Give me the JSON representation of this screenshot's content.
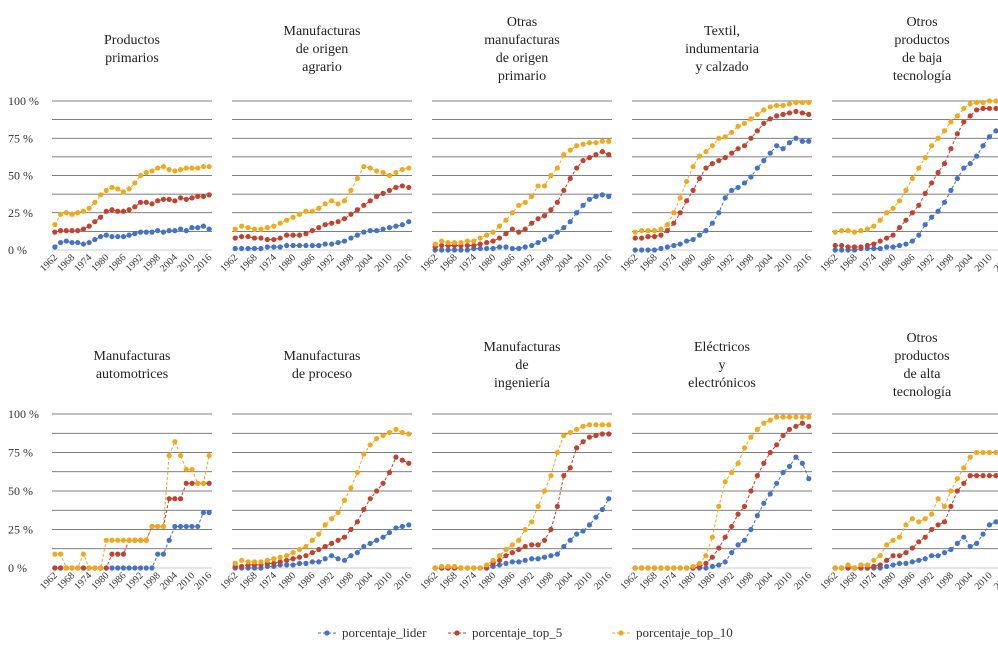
{
  "chart_data": {
    "type": "line",
    "categories": [
      "1962",
      null,
      null,
      "1968",
      null,
      null,
      "1974",
      null,
      null,
      "1980",
      null,
      null,
      "1986",
      null,
      null,
      "1992",
      null,
      null,
      "1998",
      null,
      null,
      "2004",
      null,
      null,
      "2010",
      null,
      null,
      "2016"
    ],
    "ylim": [
      0,
      100
    ],
    "yticks": [
      {
        "value": 0,
        "label": "0 %"
      },
      {
        "value": 25,
        "label": "25 %"
      },
      {
        "value": 50,
        "label": "50 %"
      },
      {
        "value": 75,
        "label": "75 %"
      },
      {
        "value": 100,
        "label": "100 %"
      }
    ],
    "minor_yticks": [
      12.5,
      37.5,
      62.5,
      87.5
    ],
    "grid": true,
    "legend": [
      {
        "name": "porcentaje_lider",
        "color": "#4472c4"
      },
      {
        "name": "porcentaje_top_5",
        "color": "#c0422f"
      },
      {
        "name": "porcentaje_top_10",
        "color": "#f0a91c"
      }
    ],
    "panels": [
      {
        "title": "Productos\nprimarios",
        "series": [
          {
            "values": [
              2,
              5,
              6,
              5,
              5,
              4,
              5,
              7,
              9,
              10,
              9,
              9,
              9,
              10,
              11,
              12,
              12,
              12,
              13,
              12,
              13,
              13,
              14,
              13,
              15,
              15,
              16,
              14
            ]
          },
          {
            "values": [
              12,
              13,
              13,
              13,
              13,
              14,
              16,
              19,
              22,
              26,
              27,
              26,
              26,
              27,
              29,
              32,
              32,
              31,
              33,
              34,
              34,
              33,
              35,
              34,
              35,
              36,
              36,
              37
            ]
          },
          {
            "values": [
              17,
              24,
              25,
              24,
              25,
              26,
              28,
              32,
              37,
              40,
              42,
              41,
              39,
              41,
              45,
              50,
              52,
              53,
              55,
              56,
              54,
              53,
              54,
              55,
              55,
              55,
              56,
              56
            ]
          }
        ]
      },
      {
        "title": "Manufacturas\nde origen\nagrario",
        "series": [
          {
            "values": [
              1,
              1,
              1,
              1,
              1,
              2,
              2,
              2,
              3,
              3,
              3,
              3,
              3,
              3,
              4,
              4,
              5,
              6,
              8,
              10,
              12,
              13,
              13,
              14,
              15,
              16,
              17,
              19
            ]
          },
          {
            "values": [
              8,
              9,
              9,
              8,
              8,
              7,
              7,
              8,
              10,
              10,
              10,
              11,
              13,
              15,
              17,
              18,
              19,
              21,
              24,
              27,
              30,
              33,
              36,
              38,
              40,
              42,
              43,
              42
            ]
          },
          {
            "values": [
              14,
              16,
              15,
              14,
              14,
              15,
              16,
              18,
              20,
              22,
              24,
              26,
              26,
              28,
              31,
              33,
              31,
              33,
              40,
              48,
              56,
              55,
              53,
              52,
              50,
              52,
              54,
              55
            ]
          }
        ]
      },
      {
        "title": "Otras\nmanufacturas\nde origen\nprimario",
        "series": [
          {
            "values": [
              0,
              0,
              0,
              0,
              0,
              0,
              1,
              1,
              1,
              1,
              2,
              2,
              1,
              1,
              2,
              3,
              5,
              7,
              9,
              12,
              15,
              19,
              25,
              30,
              34,
              36,
              37,
              36
            ]
          },
          {
            "values": [
              2,
              3,
              3,
              3,
              3,
              3,
              3,
              4,
              5,
              6,
              8,
              11,
              14,
              12,
              14,
              18,
              21,
              23,
              27,
              32,
              40,
              48,
              55,
              60,
              62,
              64,
              66,
              64
            ]
          },
          {
            "values": [
              4,
              6,
              5,
              5,
              5,
              6,
              6,
              8,
              10,
              12,
              16,
              20,
              25,
              30,
              32,
              36,
              43,
              43,
              50,
              55,
              64,
              67,
              70,
              71,
              72,
              72,
              73,
              73
            ]
          }
        ]
      },
      {
        "title": "Textil,\nindumentaria\ny calzado",
        "series": [
          {
            "values": [
              0,
              0,
              0,
              0,
              1,
              2,
              3,
              4,
              6,
              7,
              10,
              13,
              18,
              25,
              35,
              40,
              42,
              45,
              49,
              55,
              60,
              65,
              70,
              68,
              72,
              75,
              73,
              73
            ]
          },
          {
            "values": [
              8,
              8,
              9,
              9,
              10,
              13,
              18,
              25,
              33,
              40,
              48,
              55,
              58,
              60,
              62,
              65,
              68,
              70,
              75,
              80,
              85,
              88,
              90,
              91,
              92,
              93,
              92,
              91
            ]
          },
          {
            "values": [
              12,
              13,
              13,
              13,
              14,
              17,
              25,
              35,
              46,
              56,
              63,
              66,
              70,
              75,
              76,
              79,
              83,
              85,
              88,
              91,
              94,
              96,
              97,
              97,
              98,
              99,
              99,
              99
            ]
          }
        ]
      },
      {
        "title": "Otros\nproductos\nde baja\ntecnología",
        "series": [
          {
            "values": [
              0,
              0,
              0,
              0,
              1,
              1,
              1,
              1,
              2,
              2,
              3,
              4,
              6,
              10,
              17,
              22,
              26,
              32,
              40,
              48,
              55,
              58,
              63,
              70,
              76,
              80,
              82,
              83
            ]
          },
          {
            "values": [
              3,
              3,
              2,
              2,
              2,
              3,
              4,
              6,
              8,
              10,
              15,
              20,
              25,
              30,
              38,
              45,
              52,
              58,
              68,
              78,
              86,
              90,
              94,
              95,
              95,
              95,
              95,
              95
            ]
          },
          {
            "values": [
              12,
              13,
              13,
              12,
              13,
              14,
              16,
              20,
              25,
              28,
              33,
              40,
              48,
              55,
              62,
              70,
              75,
              80,
              86,
              90,
              95,
              98,
              99,
              99,
              100,
              100,
              100,
              99
            ]
          }
        ]
      },
      {
        "title": "Manufacturas\nautomotrices",
        "series": [
          {
            "values": [
              0,
              0,
              0,
              0,
              0,
              0,
              0,
              0,
              0,
              0,
              0,
              0,
              0,
              0,
              0,
              0,
              0,
              0,
              9,
              9,
              18,
              27,
              27,
              27,
              27,
              27,
              36,
              36
            ]
          },
          {
            "values": [
              0,
              0,
              0,
              0,
              0,
              0,
              0,
              0,
              0,
              0,
              9,
              9,
              9,
              18,
              18,
              18,
              18,
              27,
              27,
              27,
              45,
              45,
              45,
              55,
              55,
              55,
              55,
              55
            ]
          },
          {
            "values": [
              9,
              9,
              0,
              0,
              0,
              9,
              0,
              0,
              0,
              18,
              18,
              18,
              18,
              18,
              18,
              18,
              18,
              27,
              27,
              27,
              73,
              82,
              73,
              64,
              64,
              55,
              55,
              73
            ]
          }
        ]
      },
      {
        "title": "Manufacturas\nde proceso",
        "series": [
          {
            "values": [
              0,
              0,
              0,
              0,
              0,
              1,
              1,
              2,
              2,
              2,
              3,
              3,
              4,
              4,
              6,
              8,
              6,
              5,
              8,
              10,
              14,
              16,
              18,
              20,
              23,
              26,
              27,
              28
            ]
          },
          {
            "values": [
              1,
              1,
              2,
              2,
              2,
              3,
              3,
              4,
              5,
              6,
              7,
              8,
              10,
              12,
              14,
              16,
              18,
              20,
              25,
              30,
              38,
              45,
              50,
              55,
              62,
              72,
              70,
              68
            ]
          },
          {
            "values": [
              3,
              5,
              4,
              4,
              4,
              5,
              6,
              7,
              8,
              10,
              12,
              14,
              18,
              22,
              28,
              32,
              36,
              44,
              52,
              62,
              74,
              80,
              84,
              86,
              88,
              90,
              88,
              87
            ]
          }
        ]
      },
      {
        "title": "Manufacturas\nde\ningeniería",
        "series": [
          {
            "values": [
              0,
              0,
              0,
              0,
              0,
              0,
              0,
              0,
              0,
              1,
              2,
              3,
              4,
              4,
              5,
              6,
              6,
              7,
              8,
              9,
              14,
              18,
              22,
              24,
              28,
              33,
              38,
              45
            ]
          },
          {
            "values": [
              0,
              0,
              0,
              0,
              0,
              0,
              0,
              0,
              0,
              3,
              5,
              8,
              10,
              12,
              14,
              15,
              15,
              18,
              25,
              40,
              60,
              65,
              78,
              82,
              85,
              86,
              87,
              87
            ]
          },
          {
            "values": [
              0,
              1,
              1,
              1,
              0,
              0,
              0,
              0,
              2,
              5,
              8,
              12,
              15,
              18,
              25,
              30,
              40,
              50,
              60,
              75,
              86,
              88,
              90,
              92,
              93,
              93,
              93,
              93
            ]
          }
        ]
      },
      {
        "title": "Eléctricos\ny\nelectrónicos",
        "series": [
          {
            "values": [
              0,
              0,
              0,
              0,
              0,
              0,
              0,
              0,
              0,
              0,
              0,
              0,
              1,
              2,
              4,
              10,
              15,
              18,
              25,
              34,
              42,
              48,
              55,
              62,
              66,
              72,
              68,
              58
            ]
          },
          {
            "values": [
              0,
              0,
              0,
              0,
              0,
              0,
              0,
              0,
              0,
              0,
              1,
              3,
              7,
              13,
              20,
              27,
              35,
              40,
              50,
              60,
              68,
              75,
              80,
              86,
              90,
              92,
              94,
              92
            ]
          },
          {
            "values": [
              0,
              0,
              0,
              0,
              0,
              0,
              0,
              0,
              0,
              1,
              3,
              8,
              20,
              40,
              56,
              62,
              68,
              78,
              85,
              90,
              94,
              96,
              98,
              98,
              98,
              98,
              98,
              98
            ]
          }
        ]
      },
      {
        "title": "Otros\nproductos\nde alta\ntecnología",
        "series": [
          {
            "values": [
              0,
              0,
              0,
              0,
              0,
              0,
              0,
              0,
              1,
              2,
              3,
              3,
              4,
              5,
              6,
              8,
              8,
              10,
              12,
              16,
              20,
              14,
              16,
              22,
              28,
              30,
              26,
              24
            ]
          },
          {
            "values": [
              0,
              0,
              0,
              0,
              0,
              0,
              1,
              2,
              5,
              8,
              8,
              10,
              13,
              17,
              20,
              25,
              28,
              30,
              40,
              50,
              55,
              60,
              60,
              60,
              60,
              60,
              60,
              60
            ]
          },
          {
            "values": [
              0,
              0,
              2,
              0,
              2,
              2,
              5,
              8,
              15,
              18,
              20,
              28,
              32,
              30,
              32,
              35,
              45,
              40,
              50,
              58,
              65,
              72,
              75,
              75,
              75,
              75,
              75,
              75
            ]
          }
        ]
      }
    ]
  }
}
